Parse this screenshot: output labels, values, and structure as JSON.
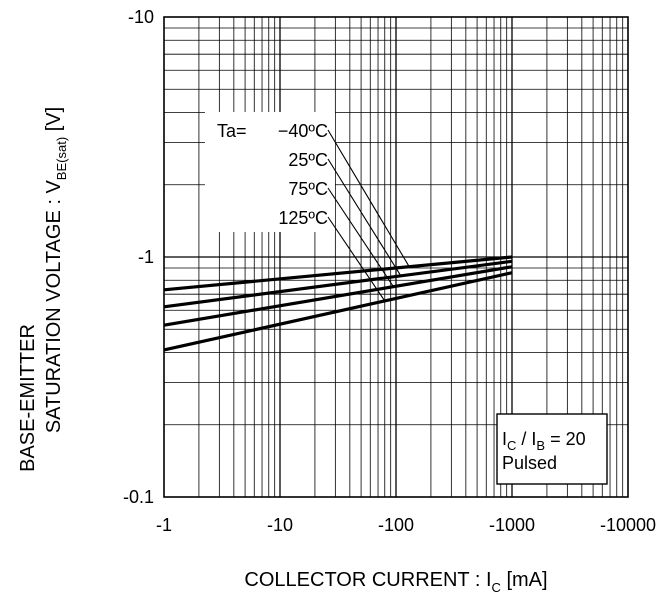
{
  "chart_data": {
    "type": "line",
    "xscale": "log",
    "yscale": "log",
    "x_ticks": [
      -1,
      -10,
      -100,
      -1000,
      -10000
    ],
    "x_tick_labels": [
      "-1",
      "-10",
      "-100",
      "-1000",
      "-10000"
    ],
    "y_ticks": [
      -0.1,
      -1,
      -10
    ],
    "y_tick_labels": [
      "-0.1",
      "-1",
      "-10"
    ],
    "xlim": [
      -1,
      -10000
    ],
    "ylim": [
      -0.1,
      -10
    ],
    "grid": true,
    "xlabel": {
      "main": "COLLECTOR CURRENT : I",
      "sub": "C",
      "unit": " [mA]"
    },
    "ylabel": {
      "line1": "BASE-EMITTER",
      "line2_main": "SATURATION VOLTAGE : V",
      "line2_sub": "BE(sat)",
      "line2_unit": " [V]"
    },
    "legend_prefix": "Ta=",
    "series": [
      {
        "name": "−40ºC",
        "x": [
          -1,
          -1000
        ],
        "y": [
          -0.73,
          -1.0
        ]
      },
      {
        "name": "25ºC",
        "x": [
          -1,
          -1000
        ],
        "y": [
          -0.62,
          -0.96
        ]
      },
      {
        "name": "75ºC",
        "x": [
          -1,
          -1000
        ],
        "y": [
          -0.52,
          -0.91
        ]
      },
      {
        "name": "125ºC",
        "x": [
          -1,
          -1000
        ],
        "y": [
          -0.41,
          -0.86
        ]
      }
    ],
    "conditions": {
      "line1_a": "I",
      "line1_a_sub": "C",
      "line1_b": " / I",
      "line1_b_sub": "B",
      "line1_c": " = 20",
      "line2": "Pulsed"
    }
  }
}
